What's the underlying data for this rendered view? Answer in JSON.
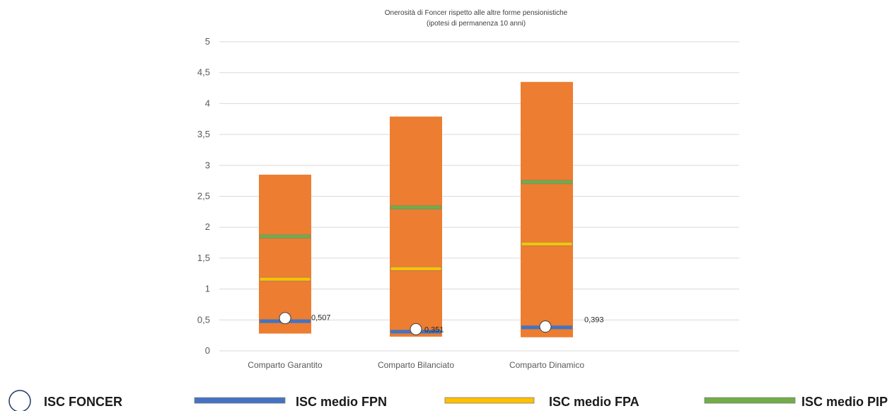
{
  "chart_data": {
    "type": "bar",
    "title": "Onerosità di Foncer rispetto alle altre forme pensionistiche",
    "subtitle": "(ipotesi di permanenza 10 anni)",
    "categories": [
      "Comparto Garantito",
      "Comparto Bilanciato",
      "Comparto Dinamico"
    ],
    "ylim": [
      0,
      5
    ],
    "y_ticks": [
      {
        "value": 0,
        "label": "0"
      },
      {
        "value": 0.5,
        "label": "0,5"
      },
      {
        "value": 1,
        "label": "1"
      },
      {
        "value": 1.5,
        "label": "1,5"
      },
      {
        "value": 2,
        "label": "2"
      },
      {
        "value": 2.5,
        "label": "2,5"
      },
      {
        "value": 3,
        "label": "3"
      },
      {
        "value": 3.5,
        "label": "3,5"
      },
      {
        "value": 4,
        "label": "4"
      },
      {
        "value": 4.5,
        "label": "4,5"
      },
      {
        "value": 5,
        "label": "5"
      }
    ],
    "grid": true,
    "range_bars": {
      "color": "#ED7D31",
      "min": [
        0.28,
        0.23,
        0.22
      ],
      "max": [
        2.85,
        3.79,
        4.35
      ]
    },
    "series": [
      {
        "name": "ISC FONCER",
        "kind": "marker",
        "values": [
          0.507,
          0.351,
          0.393
        ],
        "labels": [
          "0,507",
          "0,351",
          "0,393"
        ],
        "color": "#ffffff"
      },
      {
        "name": "ISC medio FPN",
        "kind": "line",
        "values": [
          0.48,
          0.31,
          0.38
        ],
        "color": "#4472C4"
      },
      {
        "name": "ISC medio FPA",
        "kind": "line",
        "values": [
          1.16,
          1.33,
          1.73
        ],
        "color": "#FFC000"
      },
      {
        "name": "ISC medio PIP",
        "kind": "line",
        "values": [
          1.85,
          2.32,
          2.73
        ],
        "color": "#70AD47"
      }
    ],
    "legend": {
      "placement": "bottom",
      "items": [
        {
          "label": "ISC FONCER",
          "symbol": "circle"
        },
        {
          "label": "ISC medio FPN",
          "symbol": "bar",
          "color": "#4472C4"
        },
        {
          "label": "ISC medio FPA",
          "symbol": "bar",
          "color": "#FFC000"
        },
        {
          "label": "ISC medio PIP",
          "symbol": "bar",
          "color": "#70AD47"
        }
      ]
    }
  }
}
